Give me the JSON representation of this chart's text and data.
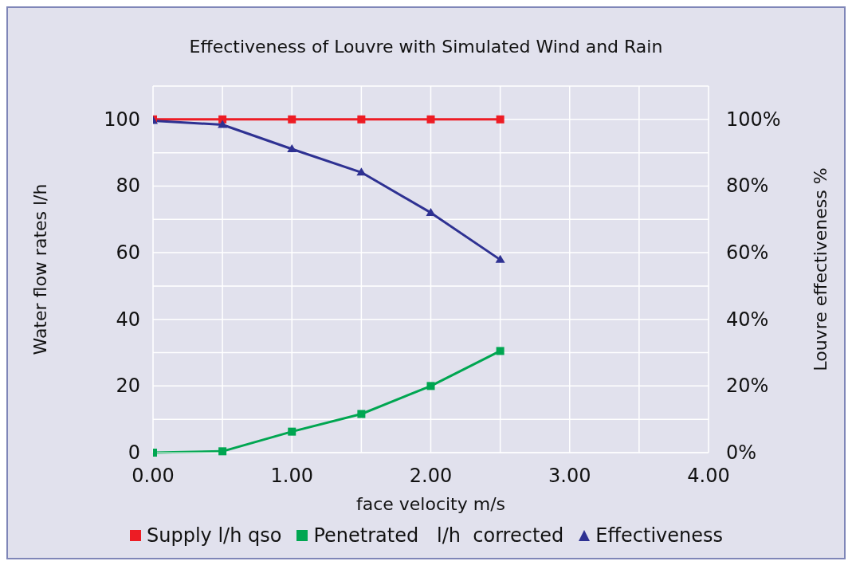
{
  "chart_data": {
    "type": "line",
    "title": "Effectiveness of Louvre with Simulated Wind and Rain",
    "xlabel": "face velocity m/s",
    "ylabel": "Water flow rates l/h",
    "y2label": "Louvre effectiveness %",
    "x": [
      0,
      0.5,
      1,
      1.5,
      2,
      2.5
    ],
    "series": [
      {
        "name": "Supply l/h qso",
        "color": "#ed1c24",
        "marker": "square",
        "values": [
          100,
          100,
          100,
          100,
          100,
          100
        ]
      },
      {
        "name": "Penetrated   l/h  corrected",
        "color": "#00a651",
        "marker": "square",
        "values": [
          0,
          0.4,
          6.3,
          11.6,
          20,
          30.5
        ]
      },
      {
        "name": "Effectiveness",
        "color": "#2e3192",
        "marker": "triangle",
        "axis": "y2",
        "values": [
          99.6,
          98.4,
          91.1,
          84.1,
          72,
          57.9
        ]
      }
    ],
    "xlim": [
      0,
      4
    ],
    "xticks": [
      {
        "value": 0,
        "label": "0.00"
      },
      {
        "value": 0.5,
        "label": null
      },
      {
        "value": 1,
        "label": "1.00"
      },
      {
        "value": 1.5,
        "label": null
      },
      {
        "value": 2,
        "label": "2.00"
      },
      {
        "value": 2.5,
        "label": null
      },
      {
        "value": 3,
        "label": "3.00"
      },
      {
        "value": 3.5,
        "label": null
      },
      {
        "value": 4,
        "label": "4.00"
      }
    ],
    "ylim": [
      0,
      110
    ],
    "yticks": [
      0,
      {
        "value": 10,
        "label": null
      },
      20,
      {
        "value": 30,
        "label": null
      },
      40,
      {
        "value": 50,
        "label": null
      },
      60,
      {
        "value": 70,
        "label": null
      },
      80,
      {
        "value": 90,
        "label": null
      },
      100,
      {
        "value": 110,
        "label": null
      }
    ],
    "y2lim": [
      0,
      110
    ],
    "y2ticks": [
      {
        "value": 0,
        "label": "0%"
      },
      {
        "value": 20,
        "label": "20%"
      },
      {
        "value": 40,
        "label": "40%"
      },
      {
        "value": 60,
        "label": "60%"
      },
      {
        "value": 80,
        "label": "80%"
      },
      {
        "value": 100,
        "label": "100%"
      }
    ],
    "grid": true,
    "legend": "bottom",
    "line_style": "solid"
  }
}
